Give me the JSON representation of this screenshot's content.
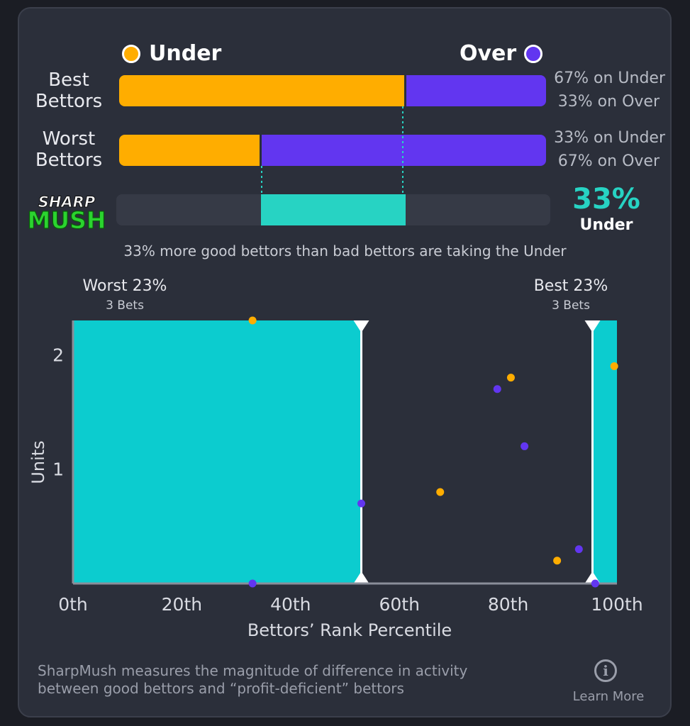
{
  "legend": {
    "under_label": "Under",
    "over_label": "Over",
    "under_color": "#ffad00",
    "over_color": "#6236f0"
  },
  "rows": [
    {
      "name": "best",
      "line1": "Best",
      "line2": "Bettors",
      "under_pct": 67,
      "under_text": "67% on Under",
      "over_text": "33% on Over"
    },
    {
      "name": "worst",
      "line1": "Worst",
      "line2": "Bettors",
      "under_pct": 33,
      "under_text": "33% on Under",
      "over_text": "67% on Over"
    }
  ],
  "sharpmush": {
    "logo_top": "SHARP",
    "logo_bottom": "MUSH",
    "value": "33%",
    "side": "Under",
    "range": [
      33,
      67
    ],
    "caption": "33% more good bettors than bad bettors are taking the Under"
  },
  "chart_data": {
    "type": "scatter",
    "xlabel": "Bettors’ Rank Percentile",
    "ylabel": "Units",
    "xlim": [
      0,
      100
    ],
    "ylim": [
      0,
      2.3
    ],
    "x_ticks": [
      0,
      20,
      40,
      60,
      80,
      100
    ],
    "x_tick_labels": [
      "0th",
      "20th",
      "40th",
      "60th",
      "80th",
      "100th"
    ],
    "y_ticks": [
      1,
      2
    ],
    "y_tick_labels": [
      "1",
      "2"
    ],
    "regions": [
      {
        "name": "worst",
        "label": "Worst 23%",
        "sublabel": "3 Bets",
        "x0": 0,
        "x1": 53
      },
      {
        "name": "best",
        "label": "Best 23%",
        "sublabel": "3 Bets",
        "x0": 95.5,
        "x1": 100
      }
    ],
    "series": [
      {
        "name": "Under",
        "color": "#ffad00",
        "points": [
          [
            33,
            2.3
          ],
          [
            67.5,
            0.8
          ],
          [
            80.5,
            1.8
          ],
          [
            89,
            0.2
          ],
          [
            99.5,
            1.9
          ]
        ]
      },
      {
        "name": "Over",
        "color": "#6236f0",
        "points": [
          [
            33,
            0.0
          ],
          [
            53,
            0.7
          ],
          [
            78,
            1.7
          ],
          [
            83,
            1.2
          ],
          [
            93,
            0.3
          ],
          [
            96,
            0.0
          ]
        ]
      }
    ]
  },
  "footer": {
    "line1": "SharpMush measures the magnitude of difference in activity",
    "line2": "between good bettors and “profit-deficient” bettors",
    "learn_more": "Learn More",
    "info_glyph": "i"
  }
}
